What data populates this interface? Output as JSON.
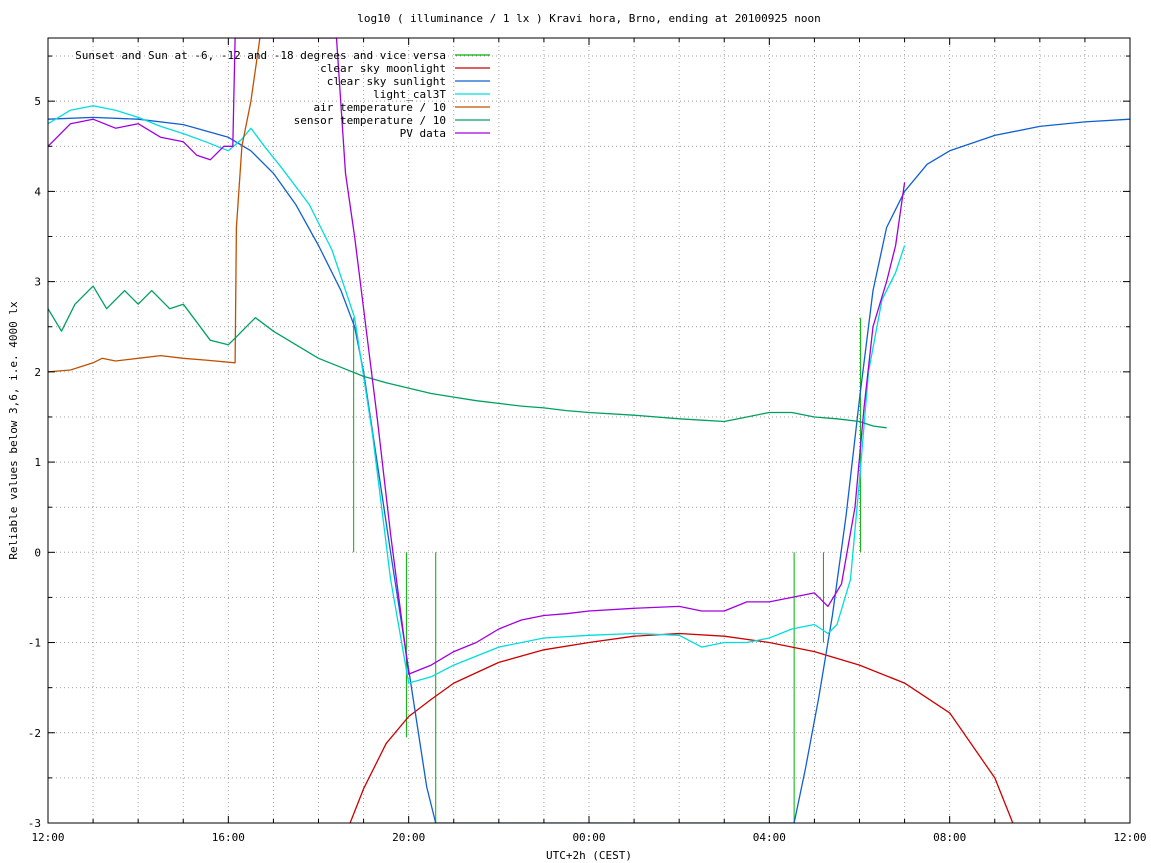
{
  "chart_data": {
    "type": "line",
    "title": "log10 ( illuminance / 1 lx ) Kravi hora, Brno, ending at 20100925 noon",
    "xlabel": "UTC+2h (CEST)",
    "ylabel": "Reliable values below 3,6, i.e. 4000 lx",
    "xlim": [
      0,
      24
    ],
    "ylim": [
      -3,
      5.7
    ],
    "x_ticks": [
      {
        "v": 0,
        "label": "12:00"
      },
      {
        "v": 4,
        "label": "16:00"
      },
      {
        "v": 8,
        "label": "20:00"
      },
      {
        "v": 12,
        "label": "00:00"
      },
      {
        "v": 16,
        "label": "04:00"
      },
      {
        "v": 20,
        "label": "08:00"
      },
      {
        "v": 24,
        "label": "12:00"
      }
    ],
    "y_ticks": [
      {
        "v": -3,
        "label": "-3"
      },
      {
        "v": -2,
        "label": "-2"
      },
      {
        "v": -1,
        "label": "-1"
      },
      {
        "v": 0,
        "label": "0"
      },
      {
        "v": 1,
        "label": "1"
      },
      {
        "v": 2,
        "label": "2"
      },
      {
        "v": 3,
        "label": "3"
      },
      {
        "v": 4,
        "label": "4"
      },
      {
        "v": 5,
        "label": "5"
      }
    ],
    "grid": true,
    "legend_position": "top-left",
    "series": [
      {
        "name": "Sunset and Sun at -6, -12 and -18 degrees and vice versa",
        "color": "#00b000",
        "style": "impulses",
        "x": [
          6.78,
          7.95,
          8.6,
          16.55,
          17.2,
          18.02
        ],
        "y": [
          2.6,
          -2.05,
          -3,
          -3,
          -1.0,
          2.6
        ]
      },
      {
        "name": "clear sky moonlight",
        "color": "#cc0000",
        "x": [
          6.7,
          7.0,
          7.5,
          8.0,
          8.5,
          9.0,
          10.0,
          11.0,
          12.0,
          13.0,
          14.0,
          15.0,
          16.0,
          17.0,
          18.0,
          19.0,
          20.0,
          21.0,
          21.4
        ],
        "y": [
          -3.0,
          -2.62,
          -2.12,
          -1.82,
          -1.63,
          -1.45,
          -1.22,
          -1.08,
          -1.0,
          -0.93,
          -0.9,
          -0.93,
          -1.0,
          -1.1,
          -1.25,
          -1.45,
          -1.78,
          -2.5,
          -3.0
        ]
      },
      {
        "name": "clear sky sunlight",
        "color": "#1060d0",
        "x": [
          0.0,
          1.0,
          2.0,
          3.0,
          4.0,
          4.5,
          5.0,
          5.5,
          6.0,
          6.5,
          6.8,
          7.0,
          7.3,
          7.6,
          8.0,
          8.4,
          8.6,
          16.55,
          16.8,
          17.1,
          17.4,
          17.7,
          18.0,
          18.3,
          18.6,
          19.0,
          19.5,
          20.0,
          21.0,
          22.0,
          23.0,
          24.0
        ],
        "y": [
          4.8,
          4.82,
          4.8,
          4.74,
          4.6,
          4.45,
          4.2,
          3.85,
          3.4,
          2.9,
          2.5,
          2.0,
          1.0,
          0.0,
          -1.3,
          -2.6,
          -3.0,
          -3.0,
          -2.4,
          -1.6,
          -0.7,
          0.4,
          1.7,
          2.9,
          3.6,
          4.0,
          4.3,
          4.45,
          4.62,
          4.72,
          4.77,
          4.8
        ]
      },
      {
        "name": "light_cal3T",
        "color": "#00dddd",
        "x": [
          0.0,
          0.5,
          1.0,
          1.5,
          2.0,
          2.5,
          3.0,
          3.5,
          4.0,
          4.3,
          4.5,
          4.8,
          5.2,
          5.8,
          6.3,
          6.8,
          7.2,
          7.6,
          8.0,
          8.5,
          9.0,
          9.5,
          10.0,
          11.0,
          12.0,
          13.0,
          14.0,
          14.5,
          15.0,
          15.5,
          16.0,
          16.5,
          17.0,
          17.3,
          17.5,
          17.8,
          18.0,
          18.2,
          18.5,
          18.8,
          19.0
        ],
        "y": [
          4.75,
          4.9,
          4.95,
          4.9,
          4.82,
          4.72,
          4.64,
          4.55,
          4.45,
          4.58,
          4.7,
          4.5,
          4.25,
          3.85,
          3.35,
          2.6,
          1.3,
          -0.3,
          -1.45,
          -1.38,
          -1.25,
          -1.15,
          -1.05,
          -0.95,
          -0.92,
          -0.9,
          -0.92,
          -1.05,
          -1.0,
          -1.0,
          -0.95,
          -0.85,
          -0.8,
          -0.9,
          -0.8,
          -0.3,
          0.8,
          2.0,
          2.8,
          3.1,
          3.4
        ]
      },
      {
        "name": "air temperature / 10",
        "color": "#c05000",
        "x": [
          0.0,
          0.5,
          1.0,
          1.2,
          1.5,
          2.0,
          2.5,
          3.0,
          3.5,
          4.15,
          4.18,
          4.3,
          4.5,
          4.7
        ],
        "y": [
          2.0,
          2.02,
          2.1,
          2.15,
          2.12,
          2.15,
          2.18,
          2.15,
          2.13,
          2.1,
          3.6,
          4.5,
          5.0,
          5.7
        ]
      },
      {
        "name": "sensor temperature / 10",
        "color": "#00a060",
        "x": [
          0.0,
          0.3,
          0.6,
          1.0,
          1.3,
          1.7,
          2.0,
          2.3,
          2.7,
          3.0,
          3.3,
          3.6,
          4.0,
          4.2,
          4.4,
          4.6,
          5.0,
          5.5,
          6.0,
          6.5,
          7.0,
          7.5,
          8.0,
          8.5,
          9.0,
          9.5,
          10.0,
          10.5,
          11.0,
          11.5,
          12.0,
          13.0,
          14.0,
          15.0,
          15.5,
          16.0,
          16.5,
          17.0,
          17.5,
          18.0,
          18.3,
          18.6
        ],
        "y": [
          2.7,
          2.45,
          2.75,
          2.95,
          2.7,
          2.9,
          2.75,
          2.9,
          2.7,
          2.75,
          2.55,
          2.35,
          2.3,
          2.4,
          2.5,
          2.6,
          2.45,
          2.3,
          2.15,
          2.05,
          1.95,
          1.88,
          1.82,
          1.76,
          1.72,
          1.68,
          1.65,
          1.62,
          1.6,
          1.57,
          1.55,
          1.52,
          1.48,
          1.45,
          1.5,
          1.55,
          1.55,
          1.5,
          1.48,
          1.45,
          1.4,
          1.38
        ]
      },
      {
        "name": "PV data",
        "color": "#a000e0",
        "x": [
          0.0,
          0.2,
          0.5,
          1.0,
          1.5,
          2.0,
          2.5,
          3.0,
          3.3,
          3.6,
          3.9,
          4.1,
          4.15,
          4.2,
          4.3,
          6.4,
          6.6,
          6.8,
          7.0,
          7.3,
          7.6,
          8.0,
          8.5,
          9.0,
          9.5,
          10.0,
          10.5,
          11.0,
          11.5,
          12.0,
          13.0,
          14.0,
          14.5,
          15.0,
          15.5,
          16.0,
          16.5,
          17.0,
          17.3,
          17.6,
          17.9,
          18.1,
          18.3,
          18.6,
          18.8,
          19.0
        ],
        "y": [
          4.5,
          4.6,
          4.75,
          4.8,
          4.7,
          4.75,
          4.6,
          4.55,
          4.4,
          4.35,
          4.5,
          4.5,
          5.7,
          5.7,
          5.7,
          5.7,
          4.2,
          3.5,
          2.7,
          1.5,
          0.2,
          -1.35,
          -1.25,
          -1.1,
          -1.0,
          -0.85,
          -0.75,
          -0.7,
          -0.68,
          -0.65,
          -0.62,
          -0.6,
          -0.65,
          -0.65,
          -0.55,
          -0.55,
          -0.5,
          -0.45,
          -0.6,
          -0.35,
          0.5,
          1.6,
          2.5,
          3.0,
          3.4,
          4.1
        ]
      }
    ]
  }
}
